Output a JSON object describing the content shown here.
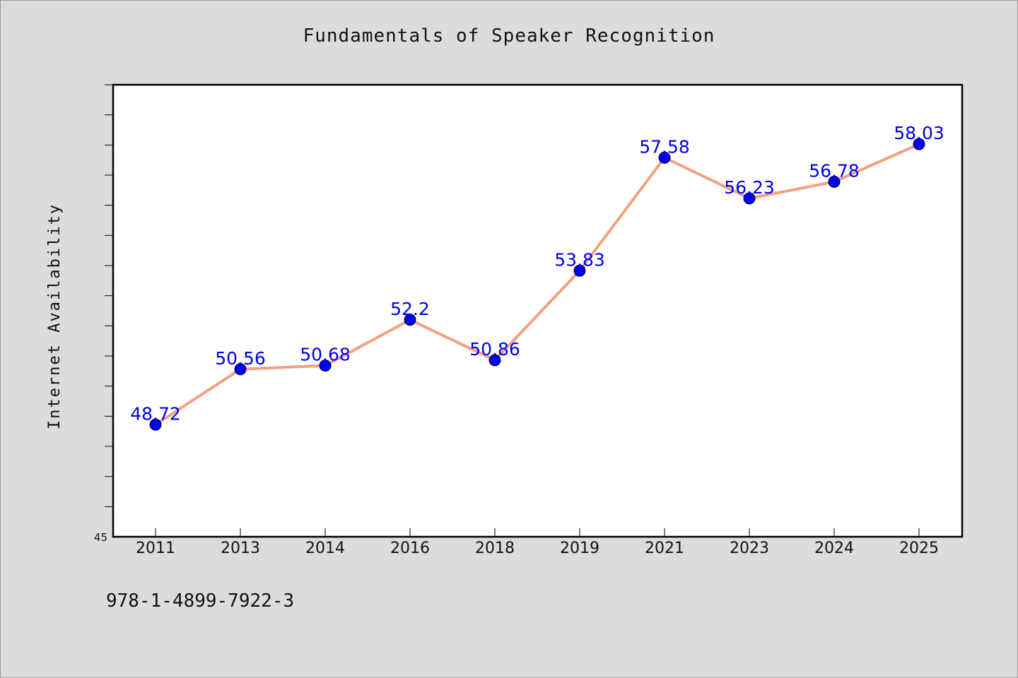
{
  "title": "Fundamentals of Speaker Recognition",
  "footer_text": "978-1-4899-7922-3",
  "colors": {
    "background": "#dcdcdc",
    "plot_background": "#ffffff",
    "line": "#f4a07e",
    "marker": "#0000ee",
    "data_label": "#0000ee"
  },
  "chart_data": {
    "type": "line",
    "title": "Fundamentals of Speaker Recognition",
    "xlabel": "",
    "ylabel": "Internet Availability",
    "categories": [
      "2011",
      "2013",
      "2014",
      "2016",
      "2018",
      "2019",
      "2021",
      "2023",
      "2024",
      "2025"
    ],
    "series": [
      {
        "values": [
          48.72,
          50.56,
          50.68,
          52.2,
          50.86,
          53.83,
          57.58,
          56.23,
          56.78,
          58.03
        ]
      }
    ],
    "data_labels": [
      "48.72",
      "50.56",
      "50.68",
      "52.2",
      "50.86",
      "53.83",
      "57.58",
      "56.23",
      "56.78",
      "58.03"
    ],
    "ylim": [
      45,
      60
    ],
    "y_tick_labels": [
      "45"
    ],
    "y_minor_step": 1,
    "grid": false,
    "legend": "none"
  }
}
